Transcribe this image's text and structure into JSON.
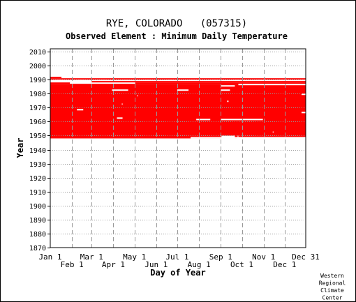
{
  "chart_data": {
    "type": "heatmap",
    "title": "RYE, COLORADO   (057315)",
    "subtitle": "Observed Element : Minimum Daily Temperature",
    "xlabel": "Day of Year",
    "ylabel": "Year",
    "credit": [
      "Western",
      "Regional",
      "Climate",
      "Center"
    ],
    "ylim": [
      1870,
      2012
    ],
    "y_ticks": [
      1870,
      1880,
      1890,
      1900,
      1910,
      1920,
      1930,
      1940,
      1950,
      1960,
      1970,
      1980,
      1990,
      2000,
      2010
    ],
    "x_ticks_upper": [
      {
        "label": "Jan 1",
        "day": 1
      },
      {
        "label": "Mar 1",
        "day": 60
      },
      {
        "label": "May 1",
        "day": 121
      },
      {
        "label": "Jul 1",
        "day": 182
      },
      {
        "label": "Sep 1",
        "day": 244
      },
      {
        "label": "Nov 1",
        "day": 305
      },
      {
        "label": "Dec 31",
        "day": 365
      }
    ],
    "x_ticks_lower": [
      {
        "label": "Feb 1",
        "day": 32
      },
      {
        "label": "Apr 1",
        "day": 91
      },
      {
        "label": "Jun 1",
        "day": 152
      },
      {
        "label": "Aug 1",
        "day": 213
      },
      {
        "label": "Oct 1",
        "day": 274
      },
      {
        "label": "Dec 1",
        "day": 335
      }
    ],
    "grid_days": [
      32,
      60,
      91,
      121,
      152,
      182,
      213,
      244,
      274,
      305,
      335
    ],
    "colors": {
      "data": "#ff0000",
      "grid": "#999999",
      "axis": "#000000"
    },
    "data_blocks": [
      {
        "day_start": 1,
        "day_end": 365,
        "year_start": 1948,
        "year_end": 1987
      },
      {
        "day_start": 1,
        "day_end": 29,
        "year_start": 1987,
        "year_end": 1988
      },
      {
        "day_start": 122,
        "day_end": 365,
        "year_start": 1987,
        "year_end": 1988
      },
      {
        "day_start": 60,
        "day_end": 365,
        "year_start": 1988,
        "year_end": 1989
      },
      {
        "day_start": 1,
        "day_end": 365,
        "year_start": 1990,
        "year_end": 1991
      },
      {
        "day_start": 1,
        "day_end": 17,
        "year_start": 1991,
        "year_end": 1992
      }
    ],
    "gap_blocks": [
      {
        "day_start": 201,
        "day_end": 365,
        "year_start": 1948,
        "year_end": 1949
      },
      {
        "day_start": 245,
        "day_end": 264,
        "year_start": 1948,
        "year_end": 1950
      },
      {
        "day_start": 267,
        "day_end": 365,
        "year_start": 1948,
        "year_end": 1949
      },
      {
        "day_start": 268,
        "day_end": 269,
        "year_start": 1949,
        "year_end": 1950
      },
      {
        "day_start": 318,
        "day_end": 319,
        "year_start": 1952,
        "year_end": 1953
      },
      {
        "day_start": 209,
        "day_end": 229,
        "year_start": 1961,
        "year_end": 1962
      },
      {
        "day_start": 244,
        "day_end": 304,
        "year_start": 1961,
        "year_end": 1962
      },
      {
        "day_start": 96,
        "day_end": 104,
        "year_start": 1962,
        "year_end": 1963
      },
      {
        "day_start": 39,
        "day_end": 48,
        "year_start": 1968,
        "year_end": 1969
      },
      {
        "day_start": 359,
        "day_end": 365,
        "year_start": 1966,
        "year_end": 1967
      },
      {
        "day_start": 103,
        "day_end": 104,
        "year_start": 1972,
        "year_end": 1973
      },
      {
        "day_start": 253,
        "day_end": 255,
        "year_start": 1974,
        "year_end": 1975
      },
      {
        "day_start": 125,
        "day_end": 126,
        "year_start": 1978,
        "year_end": 1979
      },
      {
        "day_start": 359,
        "day_end": 365,
        "year_start": 1979,
        "year_end": 1980
      },
      {
        "day_start": 89,
        "day_end": 112,
        "year_start": 1982,
        "year_end": 1983
      },
      {
        "day_start": 182,
        "day_end": 198,
        "year_start": 1982,
        "year_end": 1983
      },
      {
        "day_start": 244,
        "day_end": 257,
        "year_start": 1982,
        "year_end": 1983
      },
      {
        "day_start": 244,
        "day_end": 264,
        "year_start": 1985,
        "year_end": 1986
      },
      {
        "day_start": 269,
        "day_end": 365,
        "year_start": 1986,
        "year_end": 1987
      }
    ]
  }
}
